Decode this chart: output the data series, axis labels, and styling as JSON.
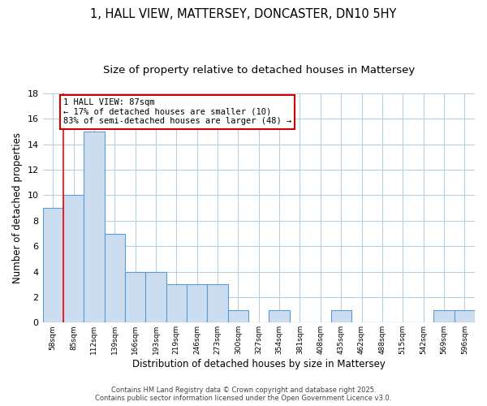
{
  "title_line1": "1, HALL VIEW, MATTERSEY, DONCASTER, DN10 5HY",
  "title_line2": "Size of property relative to detached houses in Mattersey",
  "xlabel": "Distribution of detached houses by size in Mattersey",
  "ylabel": "Number of detached properties",
  "categories": [
    "58sqm",
    "85sqm",
    "112sqm",
    "139sqm",
    "166sqm",
    "193sqm",
    "219sqm",
    "246sqm",
    "273sqm",
    "300sqm",
    "327sqm",
    "354sqm",
    "381sqm",
    "408sqm",
    "435sqm",
    "462sqm",
    "488sqm",
    "515sqm",
    "542sqm",
    "569sqm",
    "596sqm"
  ],
  "values": [
    9,
    10,
    15,
    7,
    4,
    4,
    3,
    3,
    3,
    1,
    0,
    1,
    0,
    0,
    1,
    0,
    0,
    0,
    0,
    1,
    1
  ],
  "bar_color": "#cdddf0",
  "bar_edge_color": "#5b9bd5",
  "red_line_x": 1.0,
  "annotation_title": "1 HALL VIEW: 87sqm",
  "annotation_line2": "← 17% of detached houses are smaller (10)",
  "annotation_line3": "83% of semi-detached houses are larger (48) →",
  "annotation_box_color": "#ffffff",
  "annotation_box_edge": "#cc0000",
  "ylim": [
    0,
    18
  ],
  "yticks": [
    0,
    2,
    4,
    6,
    8,
    10,
    12,
    14,
    16,
    18
  ],
  "footer_text": "Contains HM Land Registry data © Crown copyright and database right 2025.\nContains public sector information licensed under the Open Government Licence v3.0.",
  "background_color": "#ffffff",
  "grid_color": "#b8cfe0",
  "title_fontsize": 10.5,
  "subtitle_fontsize": 9.5
}
